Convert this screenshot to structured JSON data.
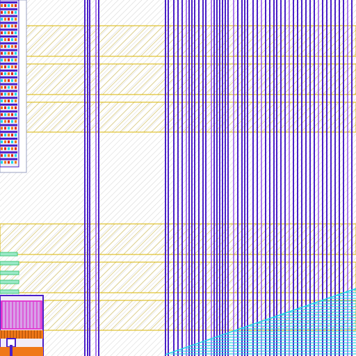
{
  "view": {
    "kind": "ic-layout-viewer"
  },
  "colors": {
    "background": "#ffffff",
    "substrate_hatch": "#c8c8c8",
    "metal_rail_outline": "#d8b400",
    "metal_rail_hatch": "#d8c878",
    "metal_vertical": "#4a1ec8",
    "metal_vertical_accent": "#8a40e8",
    "diffusion_cyan": "#18d8e8",
    "orange_fill": "#f07818",
    "magenta": "#e018c8",
    "green_pin": "#40c878",
    "red_pin": "#e02818",
    "block_border": "#9aa0c0"
  },
  "layers": [
    {
      "name": "substrate-hatch"
    },
    {
      "name": "metal-horizontal-rails"
    },
    {
      "name": "metal-vertical-lines"
    },
    {
      "name": "diffusion-triangle"
    },
    {
      "name": "standard-cell-column"
    },
    {
      "name": "pin-stack"
    },
    {
      "name": "io-macro"
    }
  ]
}
